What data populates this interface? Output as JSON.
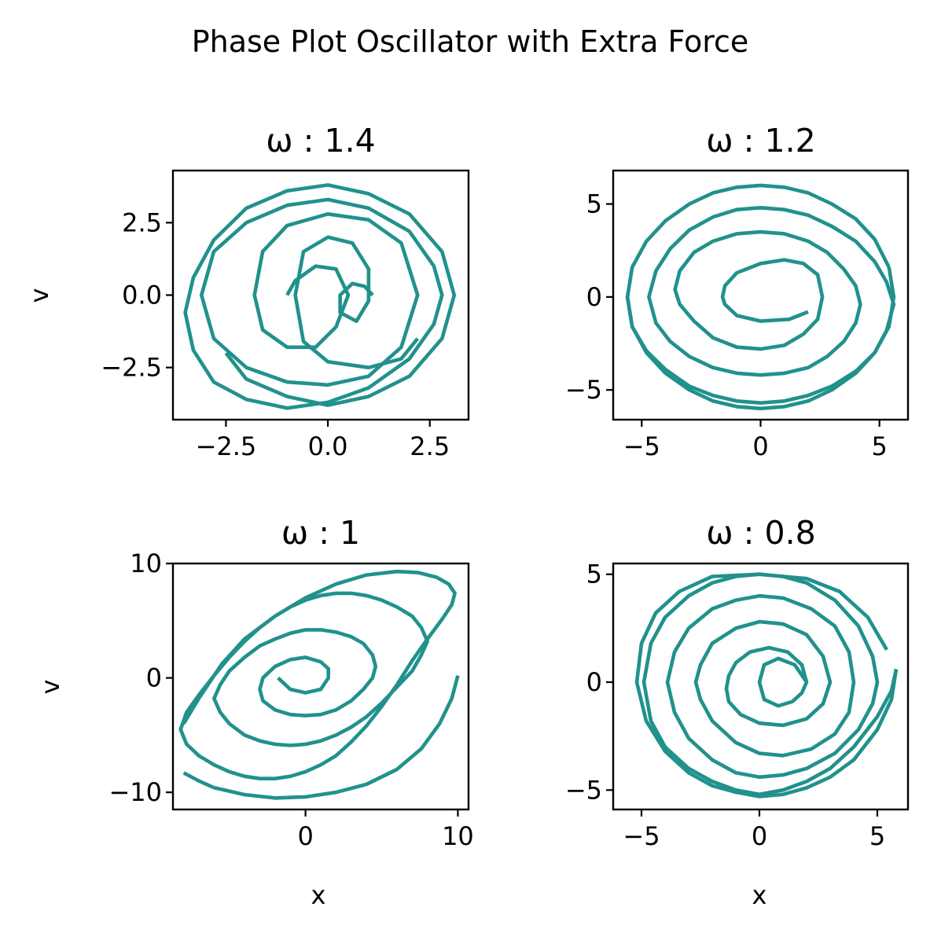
{
  "figure": {
    "title": "Phase Plot Oscillator with Extra Force",
    "line_color": "#21918c"
  },
  "chart_data": [
    {
      "type": "line",
      "title": "ω : 1.4",
      "xlabel": "",
      "ylabel": "v",
      "xlim": [
        -3.8,
        3.45
      ],
      "ylim": [
        -4.3,
        4.3
      ],
      "xticks": [
        -2.5,
        0.0,
        2.5
      ],
      "xticklabels": [
        "−2.5",
        "0.0",
        "2.5"
      ],
      "yticks": [
        -2.5,
        0.0,
        2.5
      ],
      "yticklabels": [
        "−2.5",
        "0.0",
        "2.5"
      ],
      "grid": false,
      "legend": "none",
      "series": [
        {
          "x": [
            -2.5,
            -2.0,
            -1.0,
            0.0,
            1.0,
            2.0,
            2.8,
            3.1,
            2.8,
            2.0,
            1.0,
            0.0,
            -1.0,
            -2.0,
            -2.8,
            -3.3,
            -3.5,
            -3.3,
            -2.8,
            -2.0,
            -1.0,
            0.0,
            1.0,
            2.0,
            2.6,
            2.8,
            2.6,
            2.0,
            1.0,
            0.0,
            -1.0,
            -2.0,
            -2.8,
            -3.1,
            -2.8,
            -2.0,
            -1.0,
            0.0,
            1.0,
            1.8,
            2.2,
            1.8,
            1.0,
            0.0,
            -1.0,
            -1.6,
            -1.8,
            -1.6,
            -1.0,
            -0.3,
            0.2,
            0.5,
            0.2,
            -0.3,
            -0.8,
            -1.0
          ],
          "y": [
            -2.0,
            -2.9,
            -3.5,
            -3.8,
            -3.5,
            -2.8,
            -1.5,
            0.0,
            1.5,
            2.8,
            3.5,
            3.8,
            3.6,
            3.0,
            1.9,
            0.6,
            -0.6,
            -1.9,
            -3.0,
            -3.6,
            -3.9,
            -3.7,
            -3.2,
            -2.2,
            -1.0,
            0.0,
            1.0,
            2.2,
            3.0,
            3.3,
            3.1,
            2.5,
            1.5,
            0.0,
            -1.5,
            -2.5,
            -3.0,
            -3.1,
            -2.8,
            -1.8,
            0.0,
            1.8,
            2.6,
            2.8,
            2.4,
            1.5,
            0.0,
            -1.2,
            -1.8,
            -1.8,
            -1.1,
            0.0,
            0.9,
            1.0,
            0.5,
            0.0
          ]
        },
        {
          "x": [
            2.2,
            1.8,
            1.0,
            0.0,
            -0.6,
            -0.8,
            -0.6,
            0.0,
            0.6,
            1.0,
            1.0,
            0.7,
            0.3,
            0.3,
            0.6,
            0.9,
            1.1
          ],
          "y": [
            -1.5,
            -2.2,
            -2.5,
            -2.3,
            -1.6,
            0.0,
            1.5,
            2.0,
            1.8,
            0.9,
            -0.2,
            -0.9,
            -0.6,
            0.0,
            0.4,
            0.3,
            0.0
          ]
        }
      ]
    },
    {
      "type": "line",
      "title": "ω : 1.2",
      "xlabel": "",
      "ylabel": "",
      "xlim": [
        -6.2,
        6.2
      ],
      "ylim": [
        -6.6,
        6.8
      ],
      "xticks": [
        -5,
        0,
        5
      ],
      "xticklabels": [
        "−5",
        "0",
        "5"
      ],
      "yticks": [
        -5,
        0,
        5
      ],
      "yticklabels": [
        "−5",
        "0",
        "5"
      ],
      "grid": false,
      "legend": "none",
      "series": [
        {
          "x": [
            2.0,
            1.2,
            0.0,
            -1.0,
            -1.5,
            -1.6,
            -1.5,
            -1.0,
            0.0,
            1.0,
            1.8,
            2.4,
            2.6,
            2.4,
            1.8,
            1.0,
            0.0,
            -1.0,
            -2.0,
            -2.8,
            -3.4,
            -3.6,
            -3.4,
            -2.8,
            -2.0,
            -1.0,
            0.0,
            1.0,
            2.0,
            2.8,
            3.5,
            4.0,
            4.2,
            4.0,
            3.5,
            2.8,
            2.0,
            1.0,
            0.0,
            -1.0,
            -2.0,
            -3.0,
            -3.8,
            -4.4,
            -4.7,
            -4.4,
            -3.8,
            -3.0,
            -2.0,
            -1.0,
            0.0,
            1.0,
            2.0,
            3.0,
            4.0,
            4.8,
            5.3,
            5.6,
            5.3,
            4.8,
            4.0,
            3.0,
            2.0,
            1.0,
            0.0,
            -1.0,
            -2.0,
            -3.0,
            -4.0,
            -4.8,
            -5.4,
            -5.6,
            -5.4,
            -4.8,
            -4.0,
            -3.0,
            -2.0,
            -1.0,
            0.0,
            1.0,
            2.0,
            3.0,
            4.0,
            4.8,
            5.4
          ],
          "y": [
            -0.8,
            -1.2,
            -1.3,
            -1.0,
            -0.4,
            0.0,
            0.6,
            1.3,
            1.8,
            2.0,
            1.8,
            1.2,
            0.0,
            -1.2,
            -2.0,
            -2.6,
            -2.8,
            -2.7,
            -2.2,
            -1.3,
            -0.4,
            0.4,
            1.4,
            2.4,
            3.0,
            3.4,
            3.5,
            3.4,
            3.0,
            2.4,
            1.5,
            0.6,
            -0.4,
            -1.4,
            -2.4,
            -3.2,
            -3.8,
            -4.1,
            -4.2,
            -4.1,
            -3.8,
            -3.2,
            -2.4,
            -1.4,
            0.0,
            1.4,
            2.6,
            3.6,
            4.3,
            4.7,
            4.8,
            4.7,
            4.4,
            3.8,
            3.0,
            1.9,
            0.8,
            -0.4,
            -1.8,
            -3.0,
            -4.0,
            -4.8,
            -5.3,
            -5.6,
            -5.7,
            -5.6,
            -5.3,
            -4.8,
            -3.9,
            -2.9,
            -1.6,
            0.0,
            1.6,
            3.0,
            4.1,
            5.0,
            5.6,
            5.9,
            6.0,
            5.9,
            5.6,
            5.0,
            4.2,
            3.1,
            1.6
          ]
        },
        {
          "x": [
            5.4,
            5.6,
            5.4,
            4.8,
            4.0,
            3.0,
            2.0,
            1.0,
            0.0,
            -1.0,
            -2.0,
            -3.0,
            -4.0,
            -4.8,
            -5.4,
            -5.6
          ],
          "y": [
            1.6,
            0.0,
            -1.6,
            -3.0,
            -4.1,
            -5.0,
            -5.6,
            -5.9,
            -6.0,
            -5.9,
            -5.6,
            -5.0,
            -4.1,
            -3.0,
            -1.6,
            0.0
          ]
        }
      ]
    },
    {
      "type": "line",
      "title": "ω : 1",
      "xlabel": "x",
      "ylabel": "v",
      "xlim": [
        -8.7,
        10.7
      ],
      "ylim": [
        -11.5,
        10.0
      ],
      "xticks": [
        0,
        10
      ],
      "xticklabels": [
        "0",
        "10"
      ],
      "yticks": [
        -10,
        0,
        10
      ],
      "yticklabels": [
        "−10",
        "0",
        "10"
      ],
      "grid": false,
      "legend": "none",
      "series": [
        {
          "x": [
            -1.8,
            -1.0,
            0.0,
            1.0,
            1.5,
            1.5,
            1.0,
            0.0,
            -1.0,
            -2.0,
            -2.8,
            -3.0,
            -2.8,
            -2.0,
            -1.0,
            0.0,
            1.0,
            2.0,
            3.0,
            3.8,
            4.4,
            4.6,
            4.4,
            3.8,
            3.0,
            2.0,
            1.0,
            0.0,
            -1.0,
            -2.0,
            -3.0,
            -4.0,
            -5.0,
            -5.6,
            -6.0,
            -5.6,
            -5.0,
            -4.0,
            -3.0,
            -2.0,
            -1.0,
            0.0,
            1.0,
            2.0,
            3.0,
            4.0,
            5.0,
            6.0,
            7.0,
            7.6,
            8.0,
            7.6,
            7.0,
            6.0,
            5.0,
            4.0,
            3.0,
            2.0,
            1.0,
            0.0,
            -1.0,
            -2.0,
            -3.0,
            -4.0,
            -5.0,
            -6.0,
            -7.0,
            -7.8,
            -8.2,
            -7.8,
            -7.0,
            -6.0,
            -5.0,
            -4.0,
            -3.0,
            -2.0,
            -1.0,
            0.0,
            1.0,
            2.0,
            3.0,
            4.0,
            5.0,
            6.0,
            7.0,
            8.0,
            9.0,
            9.6,
            9.8,
            9.4,
            8.6,
            7.4,
            6.0,
            4.0,
            2.0,
            0.0,
            -2.0,
            -4.0,
            -5.5,
            -7.0,
            -8.0
          ],
          "y": [
            0.0,
            -1.0,
            -1.3,
            -1.0,
            0.0,
            0.8,
            1.4,
            1.8,
            1.6,
            1.0,
            0.0,
            -1.0,
            -2.0,
            -2.8,
            -3.2,
            -3.3,
            -3.2,
            -2.8,
            -2.0,
            -1.0,
            0.0,
            1.0,
            2.0,
            3.0,
            3.6,
            4.0,
            4.2,
            4.2,
            3.9,
            3.4,
            2.8,
            1.8,
            0.6,
            -0.6,
            -1.8,
            -3.0,
            -4.0,
            -5.0,
            -5.5,
            -5.8,
            -5.9,
            -5.8,
            -5.5,
            -5.0,
            -4.3,
            -3.4,
            -2.2,
            -0.8,
            0.6,
            2.0,
            3.2,
            4.4,
            5.4,
            6.2,
            6.8,
            7.2,
            7.4,
            7.4,
            7.2,
            6.8,
            6.2,
            5.4,
            4.4,
            3.2,
            1.8,
            0.2,
            -1.5,
            -3.0,
            -4.5,
            -5.8,
            -6.8,
            -7.6,
            -8.2,
            -8.6,
            -8.8,
            -8.8,
            -8.6,
            -8.2,
            -7.6,
            -6.8,
            -5.6,
            -4.2,
            -2.5,
            -0.6,
            1.5,
            3.4,
            5.2,
            6.4,
            7.4,
            8.2,
            8.8,
            9.2,
            9.3,
            9.0,
            8.2,
            7.0,
            5.4,
            3.4,
            1.2,
            -1.8,
            -4.0
          ]
        },
        {
          "x": [
            -8.0,
            -7.0,
            -6.0,
            -4.0,
            -2.0,
            0.0,
            2.0,
            4.0,
            6.0,
            7.6,
            8.8,
            9.6,
            10.0
          ],
          "y": [
            -8.3,
            -9.0,
            -9.6,
            -10.2,
            -10.5,
            -10.4,
            -10.0,
            -9.3,
            -8.0,
            -6.2,
            -4.0,
            -1.8,
            0.2
          ]
        }
      ]
    },
    {
      "type": "line",
      "title": "ω : 0.8",
      "xlabel": "x",
      "ylabel": "",
      "xlim": [
        -6.2,
        6.3
      ],
      "ylim": [
        -5.9,
        5.5
      ],
      "xticks": [
        -5,
        0,
        5
      ],
      "xticklabels": [
        "−5",
        "0",
        "5"
      ],
      "yticks": [
        -5,
        0,
        5
      ],
      "yticklabels": [
        "−5",
        "0",
        "5"
      ],
      "grid": false,
      "legend": "none",
      "series": [
        {
          "x": [
            2.0,
            1.5,
            0.8,
            0.2,
            0.0,
            0.2,
            0.8,
            1.4,
            1.8,
            2.0,
            1.8,
            1.2,
            0.4,
            -0.4,
            -1.0,
            -1.3,
            -1.4,
            -1.3,
            -0.8,
            0.0,
            1.0,
            2.0,
            2.7,
            3.0,
            2.7,
            2.0,
            1.0,
            0.0,
            -1.0,
            -2.0,
            -2.5,
            -2.7,
            -2.5,
            -2.0,
            -1.0,
            0.0,
            1.0,
            2.2,
            3.2,
            3.8,
            4.0,
            3.8,
            3.2,
            2.2,
            1.0,
            0.0,
            -1.0,
            -2.0,
            -3.0,
            -3.6,
            -3.9,
            -3.6,
            -3.0,
            -2.0,
            -1.0,
            0.0,
            1.0,
            2.0,
            3.2,
            4.2,
            4.8,
            5.0,
            4.8,
            4.2,
            3.2,
            2.0,
            1.0,
            0.0,
            -1.0,
            -2.0,
            -3.0,
            -4.0,
            -4.6,
            -4.9,
            -4.6,
            -4.0,
            -3.0,
            -2.0,
            -1.0,
            0.0,
            1.0,
            2.0,
            3.0,
            4.0,
            5.0,
            5.6,
            5.8
          ],
          "y": [
            0.0,
            0.8,
            1.1,
            0.8,
            0.0,
            -0.8,
            -1.1,
            -0.9,
            -0.5,
            0.0,
            0.8,
            1.4,
            1.6,
            1.4,
            0.9,
            0.3,
            -0.3,
            -0.9,
            -1.5,
            -1.9,
            -2.0,
            -1.7,
            -1.0,
            0.0,
            1.2,
            2.2,
            2.7,
            2.8,
            2.5,
            1.8,
            0.8,
            0.0,
            -0.8,
            -1.8,
            -2.8,
            -3.3,
            -3.4,
            -3.1,
            -2.4,
            -1.4,
            0.0,
            1.4,
            2.6,
            3.4,
            3.9,
            4.0,
            3.8,
            3.4,
            2.5,
            1.4,
            0.0,
            -1.4,
            -2.6,
            -3.6,
            -4.2,
            -4.4,
            -4.3,
            -4.0,
            -3.3,
            -2.2,
            -1.0,
            0.0,
            1.2,
            2.6,
            3.8,
            4.6,
            4.9,
            5.0,
            4.9,
            4.6,
            4.0,
            3.0,
            1.8,
            0.0,
            -1.8,
            -3.0,
            -4.0,
            -4.6,
            -5.0,
            -5.2,
            -5.0,
            -4.6,
            -4.0,
            -3.0,
            -1.6,
            -0.4,
            0.6
          ]
        },
        {
          "x": [
            5.8,
            5.6,
            5.0,
            4.0,
            3.0,
            2.0,
            1.0,
            0.0,
            -1.0,
            -2.0,
            -3.0,
            -4.0,
            -4.8,
            -5.2,
            -5.0,
            -4.4,
            -3.4,
            -2.0,
            0.0,
            2.0,
            3.4,
            4.6,
            5.4
          ],
          "y": [
            0.6,
            -0.8,
            -2.2,
            -3.6,
            -4.4,
            -4.9,
            -5.2,
            -5.3,
            -5.1,
            -4.8,
            -4.2,
            -3.2,
            -1.8,
            0.0,
            1.8,
            3.2,
            4.2,
            4.9,
            5.0,
            4.8,
            4.2,
            3.0,
            1.5
          ]
        }
      ]
    }
  ]
}
